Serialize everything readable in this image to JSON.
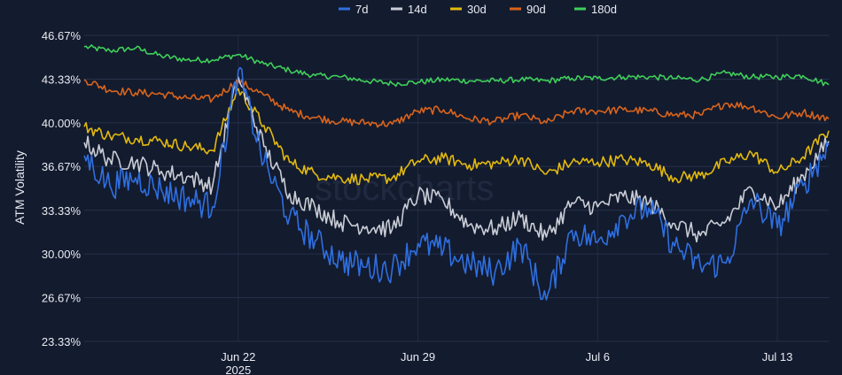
{
  "watermark": "stockcharts",
  "chart_data": {
    "type": "line",
    "ylabel": "ATM Volatility",
    "xlabel": "",
    "title": "",
    "ylim": [
      23.33,
      46.67
    ],
    "yticks": [
      "46.67%",
      "43.33%",
      "40.00%",
      "36.67%",
      "33.33%",
      "30.00%",
      "26.67%",
      "23.33%"
    ],
    "ytick_values": [
      46.67,
      43.33,
      40.0,
      36.67,
      33.33,
      30.0,
      26.67,
      23.33
    ],
    "xlim": [
      "2025-06-16",
      "2025-07-15"
    ],
    "xticks": [
      {
        "date": "2025-06-22",
        "label": "Jun 22",
        "sublabel": "2025"
      },
      {
        "date": "2025-06-29",
        "label": "Jun 29",
        "sublabel": ""
      },
      {
        "date": "2025-07-06",
        "label": "Jul 6",
        "sublabel": ""
      },
      {
        "date": "2025-07-13",
        "label": "Jul 13",
        "sublabel": ""
      }
    ],
    "grid": true,
    "legend_position": "top-center",
    "series": [
      {
        "name": "7d",
        "color": "#2f6fe0",
        "x": [
          "2025-06-16",
          "2025-06-17",
          "2025-06-18",
          "2025-06-19",
          "2025-06-20",
          "2025-06-21",
          "2025-06-22",
          "2025-06-23",
          "2025-06-24",
          "2025-06-25",
          "2025-06-26",
          "2025-06-27",
          "2025-06-28",
          "2025-06-29",
          "2025-06-30",
          "2025-07-01",
          "2025-07-02",
          "2025-07-03",
          "2025-07-04",
          "2025-07-05",
          "2025-07-06",
          "2025-07-07",
          "2025-07-08",
          "2025-07-09",
          "2025-07-10",
          "2025-07-11",
          "2025-07-12",
          "2025-07-13",
          "2025-07-14",
          "2025-07-15"
        ],
        "values": [
          37.5,
          35.2,
          35.8,
          34.9,
          34.2,
          33.6,
          44.0,
          37.0,
          32.8,
          31.0,
          29.5,
          29.0,
          28.9,
          30.8,
          30.3,
          29.2,
          28.6,
          30.7,
          26.5,
          31.8,
          30.9,
          32.9,
          33.5,
          30.6,
          29.1,
          29.3,
          34.2,
          32.0,
          35.2,
          38.3
        ]
      },
      {
        "name": "14d",
        "color": "#c9cdd6",
        "x": [
          "2025-06-16",
          "2025-06-17",
          "2025-06-18",
          "2025-06-19",
          "2025-06-20",
          "2025-06-21",
          "2025-06-22",
          "2025-06-23",
          "2025-06-24",
          "2025-06-25",
          "2025-06-26",
          "2025-06-27",
          "2025-06-28",
          "2025-06-29",
          "2025-06-30",
          "2025-07-01",
          "2025-07-02",
          "2025-07-03",
          "2025-07-04",
          "2025-07-05",
          "2025-07-06",
          "2025-07-07",
          "2025-07-08",
          "2025-07-09",
          "2025-07-10",
          "2025-07-11",
          "2025-07-12",
          "2025-07-13",
          "2025-07-14",
          "2025-07-15"
        ],
        "values": [
          38.5,
          37.2,
          37.0,
          36.3,
          35.9,
          35.2,
          43.5,
          38.2,
          34.6,
          33.5,
          32.4,
          32.1,
          31.9,
          34.5,
          34.0,
          32.2,
          31.9,
          32.8,
          31.3,
          33.9,
          33.6,
          34.4,
          33.9,
          32.3,
          31.4,
          32.5,
          35.0,
          33.6,
          36.0,
          38.6
        ]
      },
      {
        "name": "30d",
        "color": "#e2b90f",
        "x": [
          "2025-06-16",
          "2025-06-17",
          "2025-06-18",
          "2025-06-19",
          "2025-06-20",
          "2025-06-21",
          "2025-06-22",
          "2025-06-23",
          "2025-06-24",
          "2025-06-25",
          "2025-06-26",
          "2025-06-27",
          "2025-06-28",
          "2025-06-29",
          "2025-06-30",
          "2025-07-01",
          "2025-07-02",
          "2025-07-03",
          "2025-07-04",
          "2025-07-05",
          "2025-07-06",
          "2025-07-07",
          "2025-07-08",
          "2025-07-09",
          "2025-07-10",
          "2025-07-11",
          "2025-07-12",
          "2025-07-13",
          "2025-07-14",
          "2025-07-15"
        ],
        "values": [
          39.7,
          39.0,
          38.8,
          38.6,
          38.2,
          37.9,
          42.6,
          39.8,
          37.0,
          36.1,
          35.8,
          35.7,
          35.8,
          37.1,
          37.3,
          36.8,
          36.9,
          37.3,
          36.1,
          37.0,
          37.0,
          37.2,
          36.9,
          35.8,
          36.0,
          37.0,
          37.7,
          36.2,
          37.4,
          39.4
        ]
      },
      {
        "name": "90d",
        "color": "#d9641c",
        "x": [
          "2025-06-16",
          "2025-06-17",
          "2025-06-18",
          "2025-06-19",
          "2025-06-20",
          "2025-06-21",
          "2025-06-22",
          "2025-06-23",
          "2025-06-24",
          "2025-06-25",
          "2025-06-26",
          "2025-06-27",
          "2025-06-28",
          "2025-06-29",
          "2025-06-30",
          "2025-07-01",
          "2025-07-02",
          "2025-07-03",
          "2025-07-04",
          "2025-07-05",
          "2025-07-06",
          "2025-07-07",
          "2025-07-08",
          "2025-07-09",
          "2025-07-10",
          "2025-07-11",
          "2025-07-12",
          "2025-07-13",
          "2025-07-14",
          "2025-07-15"
        ],
        "values": [
          43.3,
          42.5,
          42.3,
          42.2,
          41.9,
          41.8,
          43.2,
          42.1,
          40.9,
          40.4,
          40.1,
          40.0,
          39.9,
          40.9,
          41.0,
          40.3,
          40.1,
          40.6,
          40.0,
          40.9,
          40.9,
          41.0,
          40.9,
          40.6,
          40.6,
          41.5,
          41.2,
          40.4,
          40.8,
          40.3
        ]
      },
      {
        "name": "180d",
        "color": "#3fcf5a",
        "x": [
          "2025-06-16",
          "2025-06-17",
          "2025-06-18",
          "2025-06-19",
          "2025-06-20",
          "2025-06-21",
          "2025-06-22",
          "2025-06-23",
          "2025-06-24",
          "2025-06-25",
          "2025-06-26",
          "2025-06-27",
          "2025-06-28",
          "2025-06-29",
          "2025-06-30",
          "2025-07-01",
          "2025-07-02",
          "2025-07-03",
          "2025-07-04",
          "2025-07-05",
          "2025-07-06",
          "2025-07-07",
          "2025-07-08",
          "2025-07-09",
          "2025-07-10",
          "2025-07-11",
          "2025-07-12",
          "2025-07-13",
          "2025-07-14",
          "2025-07-15"
        ],
        "values": [
          45.8,
          45.5,
          45.7,
          45.1,
          44.8,
          44.8,
          45.2,
          44.5,
          44.0,
          43.6,
          43.5,
          43.2,
          43.0,
          43.1,
          43.3,
          43.2,
          43.2,
          43.3,
          43.2,
          43.4,
          43.4,
          43.5,
          43.5,
          43.4,
          43.3,
          43.8,
          43.5,
          43.5,
          43.6,
          42.9
        ]
      }
    ]
  }
}
